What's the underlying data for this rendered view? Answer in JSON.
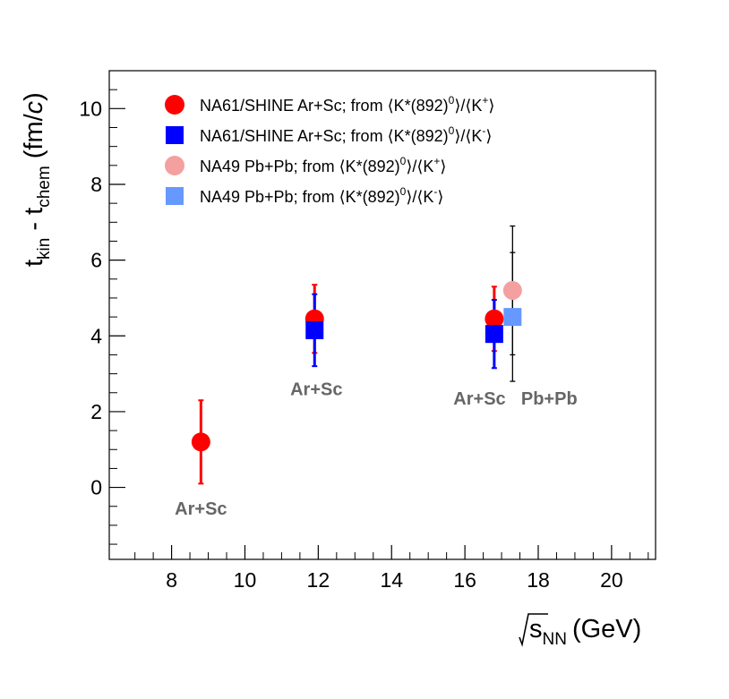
{
  "chart_data": {
    "type": "scatter",
    "title": "",
    "xlabel": "√s_NN (GeV)",
    "xlabel_parts": {
      "var": "s",
      "sub": "NN",
      "unit": "(GeV)"
    },
    "ylabel_parts": {
      "t1": "t",
      "s1": "kin",
      "mid": " - t",
      "s2": "chem",
      "unit_open": " (fm/",
      "unit_c": "c",
      "unit_close": ")"
    },
    "xlim": [
      6.3,
      21.2
    ],
    "ylim": [
      -1.9,
      11.0
    ],
    "xticks": [
      8,
      10,
      12,
      14,
      16,
      18,
      20
    ],
    "yticks": [
      0,
      2,
      4,
      6,
      8,
      10
    ],
    "xtick_labels": [
      "8",
      "10",
      "12",
      "14",
      "16",
      "18",
      "20"
    ],
    "ytick_labels": [
      "0",
      "2",
      "4",
      "6",
      "8",
      "10"
    ],
    "colors": {
      "red": "#ff0000",
      "blue": "#0000ff",
      "pink": "#f4a0a0",
      "lightblue": "#6699ff",
      "black": "#000000"
    },
    "series": [
      {
        "name": "NA61/SHINE Ar+Sc; from ⟨K*(892)⁰⟩/⟨K⁺⟩",
        "marker": "circle",
        "color": "#ff0000",
        "points": [
          {
            "x": 8.8,
            "y": 1.2,
            "err": 1.1
          },
          {
            "x": 11.9,
            "y": 4.45,
            "err": 0.9
          },
          {
            "x": 16.8,
            "y": 4.45,
            "err": 0.85
          }
        ]
      },
      {
        "name": "NA61/SHINE Ar+Sc; from ⟨K*(892)⁰⟩/⟨K⁻⟩",
        "marker": "square",
        "color": "#0000ff",
        "points": [
          {
            "x": 11.9,
            "y": 4.15,
            "err": 0.95
          },
          {
            "x": 16.8,
            "y": 4.05,
            "err": 0.9
          }
        ]
      },
      {
        "name": "NA49 Pb+Pb; from ⟨K*(892)⁰⟩/⟨K⁺⟩",
        "marker": "circle",
        "color": "#f4a0a0",
        "points": [
          {
            "x": 17.3,
            "y": 5.2,
            "err": 1.7
          }
        ]
      },
      {
        "name": "NA49 Pb+Pb; from ⟨K*(892)⁰⟩/⟨K⁻⟩",
        "marker": "square",
        "color": "#6699ff",
        "points": [
          {
            "x": 17.3,
            "y": 4.5,
            "err": 1.7
          }
        ]
      }
    ],
    "legend": [
      {
        "prefix": "NA61/SHINE Ar+Sc; from ",
        "superscript": "-",
        "ksign": "+"
      },
      {
        "prefix": "NA61/SHINE Ar+Sc; from ",
        "ksign": "-"
      },
      {
        "prefix": "NA49 Pb+Pb; from ",
        "ksign": "+"
      },
      {
        "prefix": "NA49 Pb+Pb; from ",
        "ksign": "-"
      }
    ],
    "legend_ratio": {
      "open": "⟨K*(892)",
      "zero": "0",
      "mid": "⟩/⟨K",
      "close": "⟩"
    },
    "annotations": [
      {
        "text": "Ar+Sc",
        "x": 8.8,
        "y": -0.55
      },
      {
        "text": "Ar+Sc",
        "x": 11.95,
        "y": 2.6
      },
      {
        "text": "Ar+Sc",
        "x": 16.4,
        "y": 2.35
      },
      {
        "text": "Pb+Pb",
        "x": 18.3,
        "y": 2.35
      }
    ]
  }
}
